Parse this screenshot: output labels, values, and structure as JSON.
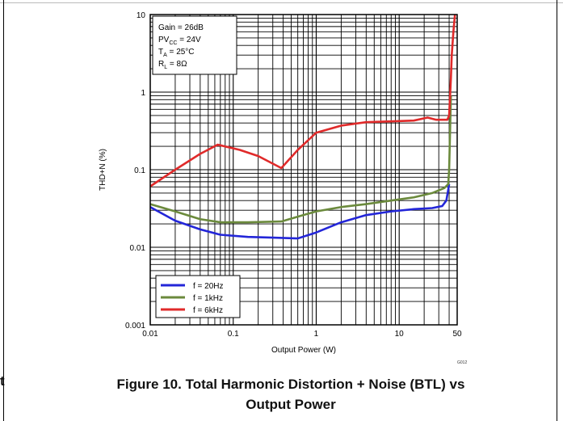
{
  "caption": {
    "line1": "Figure 10. Total Harmonic Distortion + Noise (BTL) vs",
    "line2": "Output Power"
  },
  "side_fragment": "t",
  "doc_code": "G012",
  "conditions": [
    {
      "label": "Gain",
      "sub": "",
      "value": "26dB"
    },
    {
      "label": "PV",
      "sub": "CC",
      "value": "24V"
    },
    {
      "label": "T",
      "sub": "A",
      "value": "25°C"
    },
    {
      "label": "R",
      "sub": "L",
      "value": "8Ω"
    }
  ],
  "chart_data": {
    "type": "line",
    "xlabel": "Output Power (W)",
    "ylabel": "THD+N (%)",
    "xscale": "log",
    "yscale": "log",
    "xlim": [
      0.01,
      50
    ],
    "ylim": [
      0.001,
      10
    ],
    "grid": true,
    "legend_position": "bottom-left",
    "x_ticks": [
      {
        "value": 0.01,
        "label": "0.01"
      },
      {
        "value": 0.1,
        "label": "0.1"
      },
      {
        "value": 1,
        "label": "1"
      },
      {
        "value": 10,
        "label": "10"
      },
      {
        "value": 50,
        "label": "50"
      }
    ],
    "y_ticks": [
      {
        "value": 0.001,
        "label": "0.001"
      },
      {
        "value": 0.01,
        "label": "0.01"
      },
      {
        "value": 0.1,
        "label": "0.1"
      },
      {
        "value": 1,
        "label": "1"
      },
      {
        "value": 10,
        "label": "10"
      }
    ],
    "series": [
      {
        "name": "f = 20Hz",
        "color": "#2326d8",
        "points": [
          [
            0.01,
            0.033
          ],
          [
            0.02,
            0.022
          ],
          [
            0.04,
            0.017
          ],
          [
            0.07,
            0.0145
          ],
          [
            0.15,
            0.0136
          ],
          [
            0.3,
            0.0133
          ],
          [
            0.6,
            0.013
          ],
          [
            1,
            0.0155
          ],
          [
            2,
            0.021
          ],
          [
            4,
            0.026
          ],
          [
            8,
            0.029
          ],
          [
            15,
            0.031
          ],
          [
            25,
            0.032
          ],
          [
            33,
            0.034
          ],
          [
            37,
            0.04
          ],
          [
            39,
            0.055
          ],
          [
            40,
            0.065
          ]
        ]
      },
      {
        "name": "f = 1kHz",
        "color": "#6b8a3c",
        "points": [
          [
            0.01,
            0.036
          ],
          [
            0.02,
            0.029
          ],
          [
            0.04,
            0.023
          ],
          [
            0.07,
            0.021
          ],
          [
            0.15,
            0.021
          ],
          [
            0.38,
            0.0215
          ],
          [
            0.7,
            0.026
          ],
          [
            1,
            0.029
          ],
          [
            2,
            0.033
          ],
          [
            4,
            0.036
          ],
          [
            8,
            0.04
          ],
          [
            15,
            0.044
          ],
          [
            25,
            0.05
          ],
          [
            35,
            0.058
          ],
          [
            39,
            0.065
          ],
          [
            40,
            0.1
          ],
          [
            41,
            0.3
          ],
          [
            42,
            0.9
          ]
        ]
      },
      {
        "name": "f = 6kHz",
        "color": "#e02a2a",
        "points": [
          [
            0.01,
            0.061
          ],
          [
            0.02,
            0.1
          ],
          [
            0.04,
            0.16
          ],
          [
            0.065,
            0.21
          ],
          [
            0.12,
            0.18
          ],
          [
            0.2,
            0.15
          ],
          [
            0.38,
            0.105
          ],
          [
            0.6,
            0.18
          ],
          [
            1,
            0.3
          ],
          [
            2,
            0.37
          ],
          [
            4,
            0.41
          ],
          [
            8,
            0.42
          ],
          [
            15,
            0.43
          ],
          [
            22,
            0.47
          ],
          [
            28,
            0.44
          ],
          [
            33,
            0.44
          ],
          [
            38,
            0.44
          ],
          [
            40,
            0.5
          ],
          [
            42,
            1.5
          ],
          [
            43,
            3
          ],
          [
            45,
            6
          ],
          [
            47,
            10
          ]
        ]
      }
    ]
  }
}
